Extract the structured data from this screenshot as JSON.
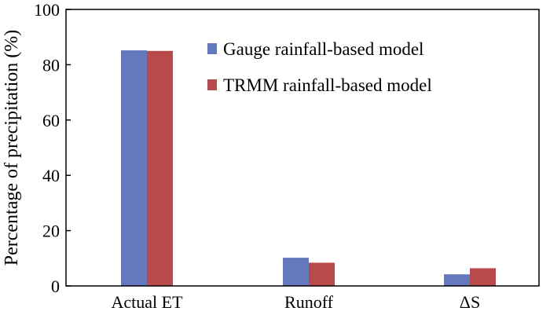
{
  "chart_data": {
    "type": "bar",
    "title": "",
    "xlabel": "",
    "ylabel": "Percentage of precipitation (%)",
    "ylim": [
      0,
      100
    ],
    "yticks": [
      0,
      20,
      40,
      60,
      80,
      100
    ],
    "categories": [
      "Actual ET",
      "Runoff",
      "ΔS"
    ],
    "series": [
      {
        "name": "Gauge rainfall-based model",
        "color": "#6378bd",
        "values": [
          85.2,
          10.2,
          4.2
        ]
      },
      {
        "name": "TRMM rainfall-based model",
        "color": "#b94a4c",
        "values": [
          85.0,
          8.4,
          6.4
        ]
      }
    ],
    "grid": false,
    "legend_position": "top-right"
  }
}
